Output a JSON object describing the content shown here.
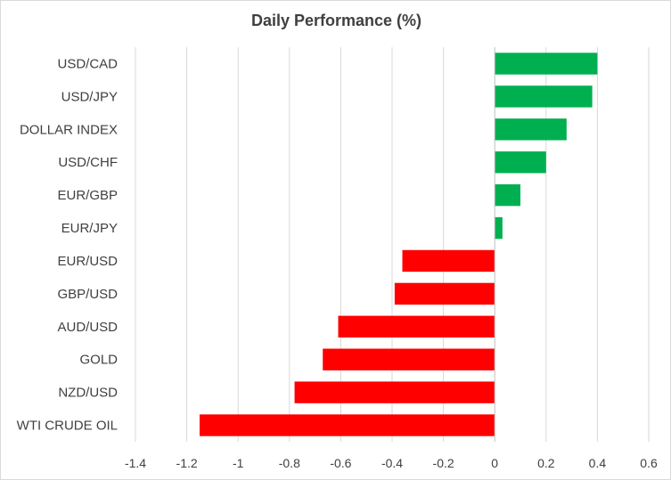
{
  "chart_data": {
    "type": "bar",
    "orientation": "horizontal",
    "title": "Daily Performance (%)",
    "xlabel": "",
    "ylabel": "",
    "categories": [
      "USD/CAD",
      "USD/JPY",
      "DOLLAR INDEX",
      "USD/CHF",
      "EUR/GBP",
      "EUR/JPY",
      "EUR/USD",
      "GBP/USD",
      "AUD/USD",
      "GOLD",
      "NZD/USD",
      "WTI CRUDE OIL"
    ],
    "values": [
      0.4,
      0.38,
      0.28,
      0.2,
      0.1,
      0.03,
      -0.36,
      -0.39,
      -0.61,
      -0.67,
      -0.78,
      -1.15
    ],
    "xlim": [
      -1.4,
      0.6
    ],
    "xticks": [
      -1.4,
      -1.2,
      -1,
      -0.8,
      -0.6,
      -0.4,
      -0.2,
      0,
      0.2,
      0.4,
      0.6
    ],
    "xtick_labels": [
      "-1.4",
      "-1.2",
      "-1",
      "-0.8",
      "-0.6",
      "-0.4",
      "-0.2",
      "0",
      "0.2",
      "0.4",
      "0.6"
    ],
    "grid": true,
    "legend": "none",
    "colors": {
      "positive": "#00b050",
      "negative": "#ff0000",
      "grid": "#d9d9d9",
      "text": "#404040"
    }
  }
}
